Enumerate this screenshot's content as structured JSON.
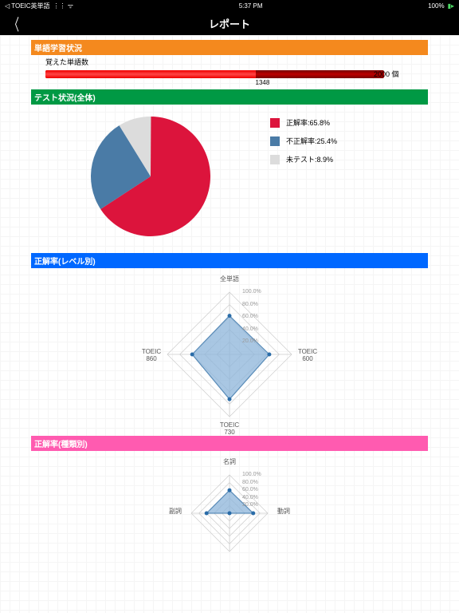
{
  "status": {
    "back_app": "TOEIC英単語",
    "time": "5:37 PM",
    "battery": "100%"
  },
  "nav": {
    "title": "レポート"
  },
  "section1": {
    "header": "単語学習状況",
    "header_bg": "#f4891e",
    "subtitle": "覚えた単語数",
    "progress": {
      "value": 1348,
      "max": 2000,
      "unit": "個",
      "fill_pct": 62,
      "bar_pct": 92,
      "fill_color": "#e60012",
      "bg_color": "#8b0000"
    }
  },
  "section2": {
    "header": "テスト状況(全体)",
    "header_bg": "#009944",
    "pie": {
      "type": "pie",
      "radius": 75,
      "slices": [
        {
          "label": "正解率",
          "value": 65.8,
          "color": "#dc143c"
        },
        {
          "label": "不正解率",
          "value": 25.4,
          "color": "#4a7ba6"
        },
        {
          "label": "未テスト",
          "value": 8.9,
          "color": "#dcdcdc"
        }
      ]
    }
  },
  "section3": {
    "header": "正解率(レベル別)",
    "header_bg": "#0068ff",
    "radar": {
      "type": "radar",
      "axes": [
        "全単語",
        "TOEIC\n600",
        "TOEIC\n730",
        "TOEIC\n860"
      ],
      "values": [
        62,
        64,
        72,
        60
      ],
      "max": 100,
      "scale_labels": [
        "100.0%",
        "80.0%",
        "60.0%",
        "40.0%",
        "20.0%"
      ],
      "fill_color": "#8cb4d9",
      "fill_opacity": 0.75,
      "stroke": "#5a8cb8",
      "point_color": "#2a6ca8",
      "grid_color": "#cccccc"
    }
  },
  "section4": {
    "header": "正解率(種類別)",
    "header_bg": "#ff5bb0",
    "radar": {
      "type": "radar",
      "axes": [
        "名詞",
        "動詞",
        "",
        "副詞"
      ],
      "values": [
        60,
        62,
        0,
        60
      ],
      "max": 100,
      "scale_labels": [
        "100.0%",
        "80.0%",
        "60.0%",
        "40.0%",
        "20.0%"
      ],
      "fill_color": "#8cb4d9",
      "fill_opacity": 0.75,
      "stroke": "#5a8cb8",
      "point_color": "#2a6ca8",
      "grid_color": "#cccccc"
    }
  }
}
